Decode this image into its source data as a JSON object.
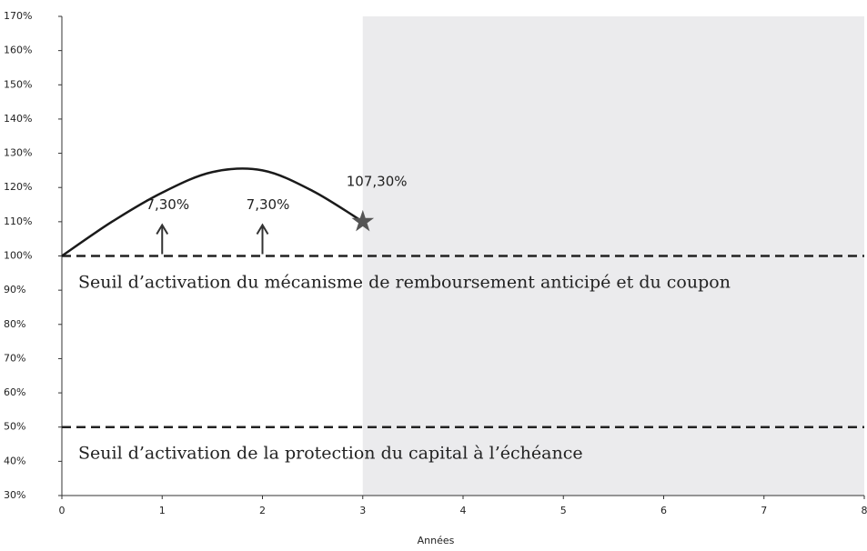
{
  "chart_data": {
    "type": "line",
    "x_label": "Années",
    "xlim": [
      0,
      8
    ],
    "xticks": [
      0,
      1,
      2,
      3,
      4,
      5,
      6,
      7,
      8
    ],
    "ylim": [
      30,
      170
    ],
    "yticks": [
      {
        "value": 30,
        "label": "30%"
      },
      {
        "value": 40,
        "label": "40%"
      },
      {
        "value": 50,
        "label": "50%"
      },
      {
        "value": 60,
        "label": "60%"
      },
      {
        "value": 70,
        "label": "70%"
      },
      {
        "value": 80,
        "label": "80%"
      },
      {
        "value": 90,
        "label": "90%"
      },
      {
        "value": 100,
        "label": "100%"
      },
      {
        "value": 110,
        "label": "110%"
      },
      {
        "value": 120,
        "label": "120%"
      },
      {
        "value": 130,
        "label": "130%"
      },
      {
        "value": 140,
        "label": "140%"
      },
      {
        "value": 150,
        "label": "150%"
      },
      {
        "value": 160,
        "label": "160%"
      },
      {
        "value": 170,
        "label": "170%"
      }
    ],
    "series": [
      {
        "color": "#1a1a1a",
        "x": [
          0,
          0.5,
          1,
          1.5,
          2,
          2.5,
          3
        ],
        "values": [
          100,
          110,
          118.5,
          124.5,
          125,
          119,
          110
        ]
      }
    ],
    "shaded_xlim": [
      3,
      8
    ],
    "shade_color": "#ebebed",
    "thresholds": [
      {
        "value": 100,
        "label": "Seuil d’activation du mécanisme de remboursement anticipé et du coupon"
      },
      {
        "value": 50,
        "label": "Seuil d’activation de la protection du capital à l’échéance"
      }
    ],
    "arrows": [
      {
        "x": 1,
        "label": "7,30%"
      },
      {
        "x": 2,
        "label": "7,30%"
      }
    ],
    "star": {
      "x": 3,
      "y": 110,
      "label": "107,30%"
    }
  }
}
